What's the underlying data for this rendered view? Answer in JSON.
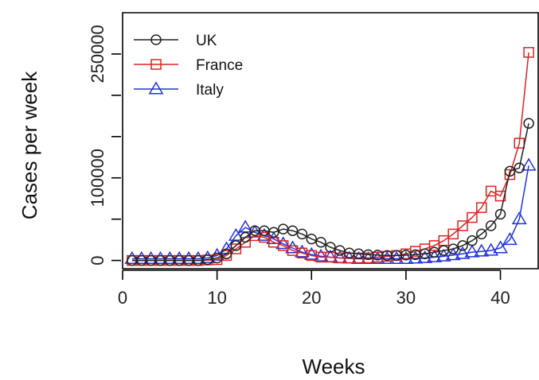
{
  "chart_data": {
    "type": "line",
    "xlabel": "Weeks",
    "ylabel": "Cases per week",
    "xlim": [
      0,
      44
    ],
    "ylim": [
      -10000,
      300000
    ],
    "xticks": [
      0,
      10,
      20,
      30,
      40
    ],
    "yticks": [
      0,
      50000,
      100000,
      150000,
      200000,
      250000
    ],
    "ytick_labels": [
      "0",
      "",
      "100000",
      "",
      "",
      "250000"
    ],
    "legend_position": "top-left",
    "x": [
      1,
      2,
      3,
      4,
      5,
      6,
      7,
      8,
      9,
      10,
      11,
      12,
      13,
      14,
      15,
      16,
      17,
      18,
      19,
      20,
      21,
      22,
      23,
      24,
      25,
      26,
      27,
      28,
      29,
      30,
      31,
      32,
      33,
      34,
      35,
      36,
      37,
      38,
      39,
      40,
      41,
      42,
      43
    ],
    "series": [
      {
        "name": "UK",
        "color": "#222222",
        "marker": "circle",
        "values": [
          0,
          0,
          0,
          0,
          0,
          0,
          0,
          0,
          1000,
          3000,
          8000,
          18000,
          28000,
          36000,
          36000,
          34000,
          38000,
          36000,
          32000,
          26000,
          22000,
          16000,
          12000,
          9000,
          8000,
          7000,
          6500,
          6000,
          6000,
          6500,
          7000,
          8000,
          10000,
          12000,
          14000,
          18000,
          24000,
          32000,
          42000,
          56000,
          108000,
          112000,
          166000
        ]
      },
      {
        "name": "France",
        "color": "#dd2222",
        "marker": "square",
        "values": [
          0,
          0,
          0,
          0,
          0,
          0,
          0,
          0,
          500,
          1000,
          6000,
          14000,
          22000,
          30000,
          28000,
          22000,
          18000,
          12000,
          9000,
          6000,
          4000,
          4000,
          3000,
          3000,
          3000,
          3000,
          4000,
          5000,
          6000,
          8000,
          11000,
          14000,
          18000,
          24000,
          32000,
          42000,
          52000,
          64000,
          84000,
          78000,
          104000,
          142000,
          252000
        ]
      },
      {
        "name": "Italy",
        "color": "#2233dd",
        "marker": "triangle",
        "values": [
          2000,
          2000,
          2000,
          2000,
          2000,
          2000,
          2000,
          2000,
          3000,
          6000,
          14000,
          30000,
          40000,
          34000,
          30000,
          26000,
          20000,
          15000,
          10000,
          7000,
          5000,
          4000,
          3000,
          2500,
          2000,
          2000,
          2000,
          2000,
          2000,
          2000,
          2500,
          3000,
          4000,
          5000,
          6500,
          8000,
          10000,
          11000,
          12000,
          15000,
          25000,
          50000,
          115000
        ]
      }
    ]
  }
}
